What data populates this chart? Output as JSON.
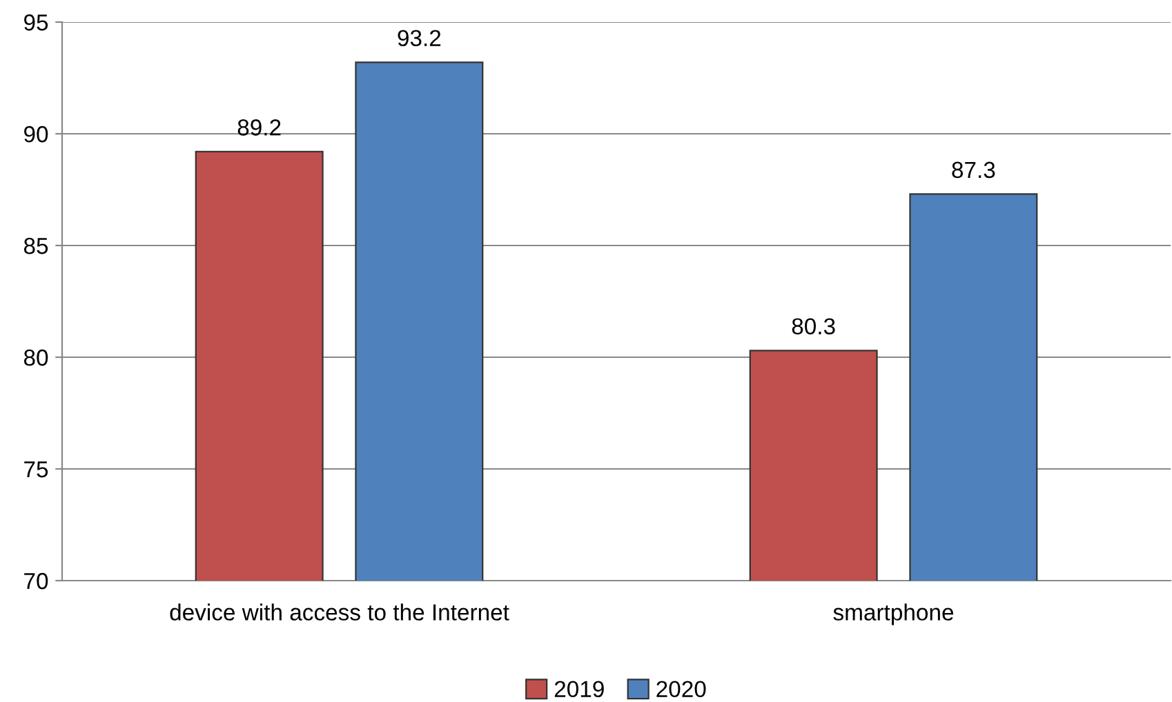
{
  "chart_data": {
    "type": "bar",
    "categories": [
      "device with access to the Internet",
      "smartphone"
    ],
    "series": [
      {
        "name": "2019",
        "color": "#c0504d",
        "values": [
          89.2,
          80.3
        ]
      },
      {
        "name": "2020",
        "color": "#4f81bd",
        "values": [
          93.2,
          87.3
        ]
      }
    ],
    "ylim": [
      70,
      95
    ],
    "yticks": [
      70,
      75,
      80,
      85,
      90,
      95
    ],
    "grid": "y",
    "legend": "bottom",
    "data_labels": true
  }
}
